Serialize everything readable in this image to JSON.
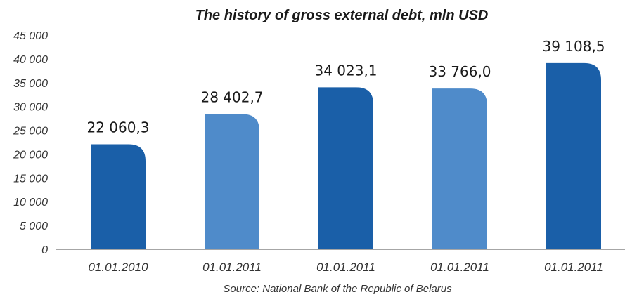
{
  "chart_data": {
    "type": "bar",
    "title": "The history of gross external debt, mln USD",
    "source": "Source: National Bank of the Republic of Belarus",
    "categories": [
      "01.01.2010",
      "01.01.2011",
      "01.01.2011",
      "01.01.2011",
      "01.01.2011"
    ],
    "values": [
      22060.3,
      28402.7,
      34023.1,
      33766.0,
      39108.5
    ],
    "value_labels": [
      "22 060,3",
      "28 402,7",
      "34 023,1",
      "33 766,0",
      "39 108,5"
    ],
    "bar_colors": [
      "#1a5fa8",
      "#4f8bca",
      "#1a5fa8",
      "#4f8bca",
      "#1a5fa8"
    ],
    "ylim": [
      0,
      45000
    ],
    "yticks": [
      0,
      5000,
      10000,
      15000,
      20000,
      25000,
      30000,
      35000,
      40000,
      45000
    ],
    "ytick_labels": [
      "0",
      "5 000",
      "10 000",
      "15 000",
      "20 000",
      "25 000",
      "30 000",
      "35 000",
      "40 000",
      "45 000"
    ],
    "xlabel": "",
    "ylabel": "",
    "grid": false,
    "legend": "none"
  }
}
